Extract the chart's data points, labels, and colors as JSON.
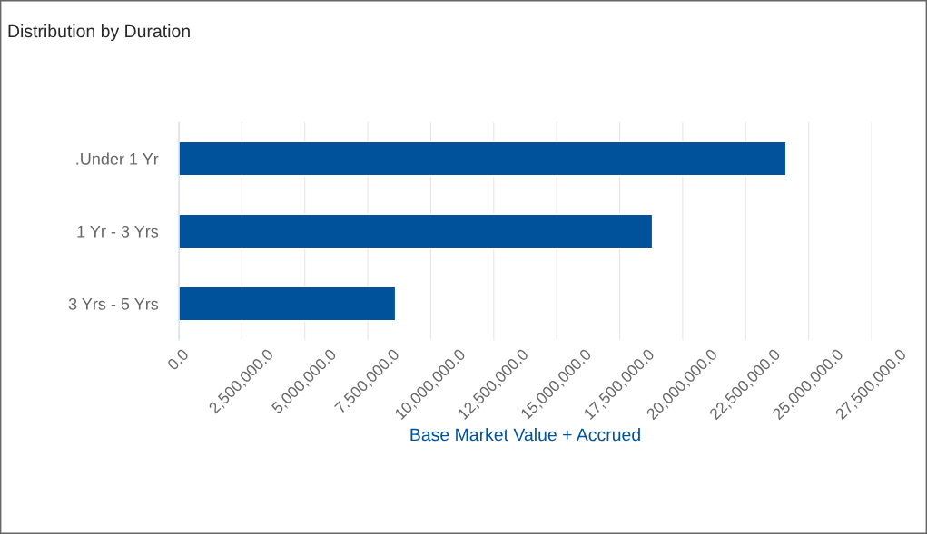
{
  "chart_data": {
    "type": "bar",
    "orientation": "horizontal",
    "title": "Distribution by Duration",
    "xlabel": "Base Market Value + Accrued",
    "categories": [
      ".Under 1 Yr",
      "1 Yr - 3 Yrs",
      "3 Yrs - 5 Yrs"
    ],
    "values": [
      24100000,
      18800000,
      8600000
    ],
    "color": "#00539b",
    "xlim": [
      0,
      27500000
    ],
    "xticks": [
      {
        "value": 0,
        "label": "0.0"
      },
      {
        "value": 2500000,
        "label": "2,500,000.0"
      },
      {
        "value": 5000000,
        "label": "5,000,000.0"
      },
      {
        "value": 7500000,
        "label": "7,500,000.0"
      },
      {
        "value": 10000000,
        "label": "10,000,000.0"
      },
      {
        "value": 12500000,
        "label": "12,500,000.0"
      },
      {
        "value": 15000000,
        "label": "15,000,000.0"
      },
      {
        "value": 17500000,
        "label": "17,500,000.0"
      },
      {
        "value": 20000000,
        "label": "20,000,000.0"
      },
      {
        "value": 22500000,
        "label": "22,500,000.0"
      },
      {
        "value": 25000000,
        "label": "25,000,000.0"
      },
      {
        "value": 27500000,
        "label": "27,500,000.0"
      }
    ],
    "grid": "x",
    "legend": false
  }
}
